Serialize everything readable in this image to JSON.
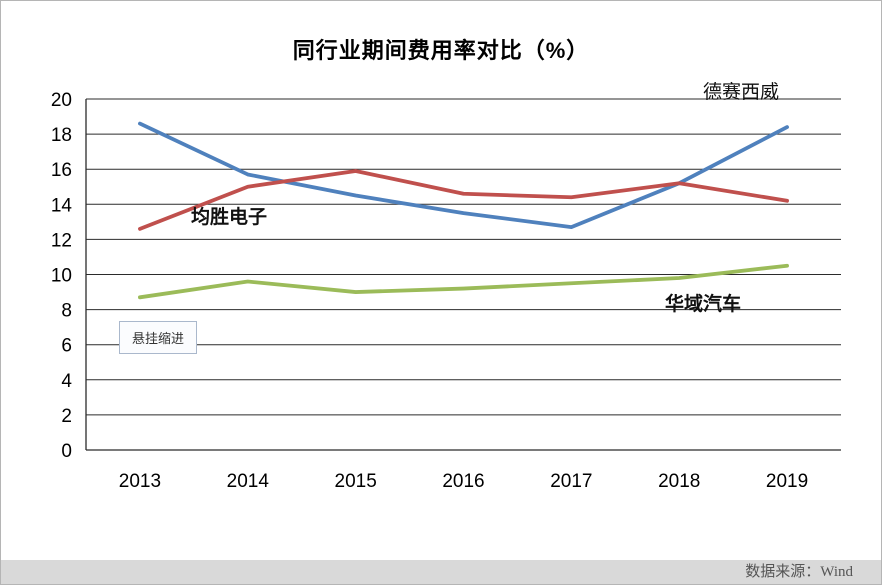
{
  "chart_data": {
    "type": "line",
    "title": "同行业期间费用率对比（%）",
    "x": [
      "2013",
      "2014",
      "2015",
      "2016",
      "2017",
      "2018",
      "2019"
    ],
    "series": [
      {
        "name": "德赛西威",
        "color": "#4F81BD",
        "values": [
          18.6,
          15.7,
          14.5,
          13.5,
          12.7,
          15.2,
          18.4
        ]
      },
      {
        "name": "均胜电子",
        "color": "#C0504D",
        "values": [
          12.6,
          15.0,
          15.9,
          14.6,
          14.4,
          15.2,
          14.2
        ]
      },
      {
        "name": "华域汽车",
        "color": "#9BBB59",
        "values": [
          8.7,
          9.6,
          9.0,
          9.2,
          9.5,
          9.8,
          10.5
        ]
      }
    ],
    "ylim": [
      0,
      20
    ],
    "ytick_step": 2,
    "grid": "horizontal",
    "legend_position": "inline-annotations"
  },
  "annotations": {
    "note_box": "悬挂缩进"
  },
  "footer": {
    "source": "数据来源：Wind"
  }
}
